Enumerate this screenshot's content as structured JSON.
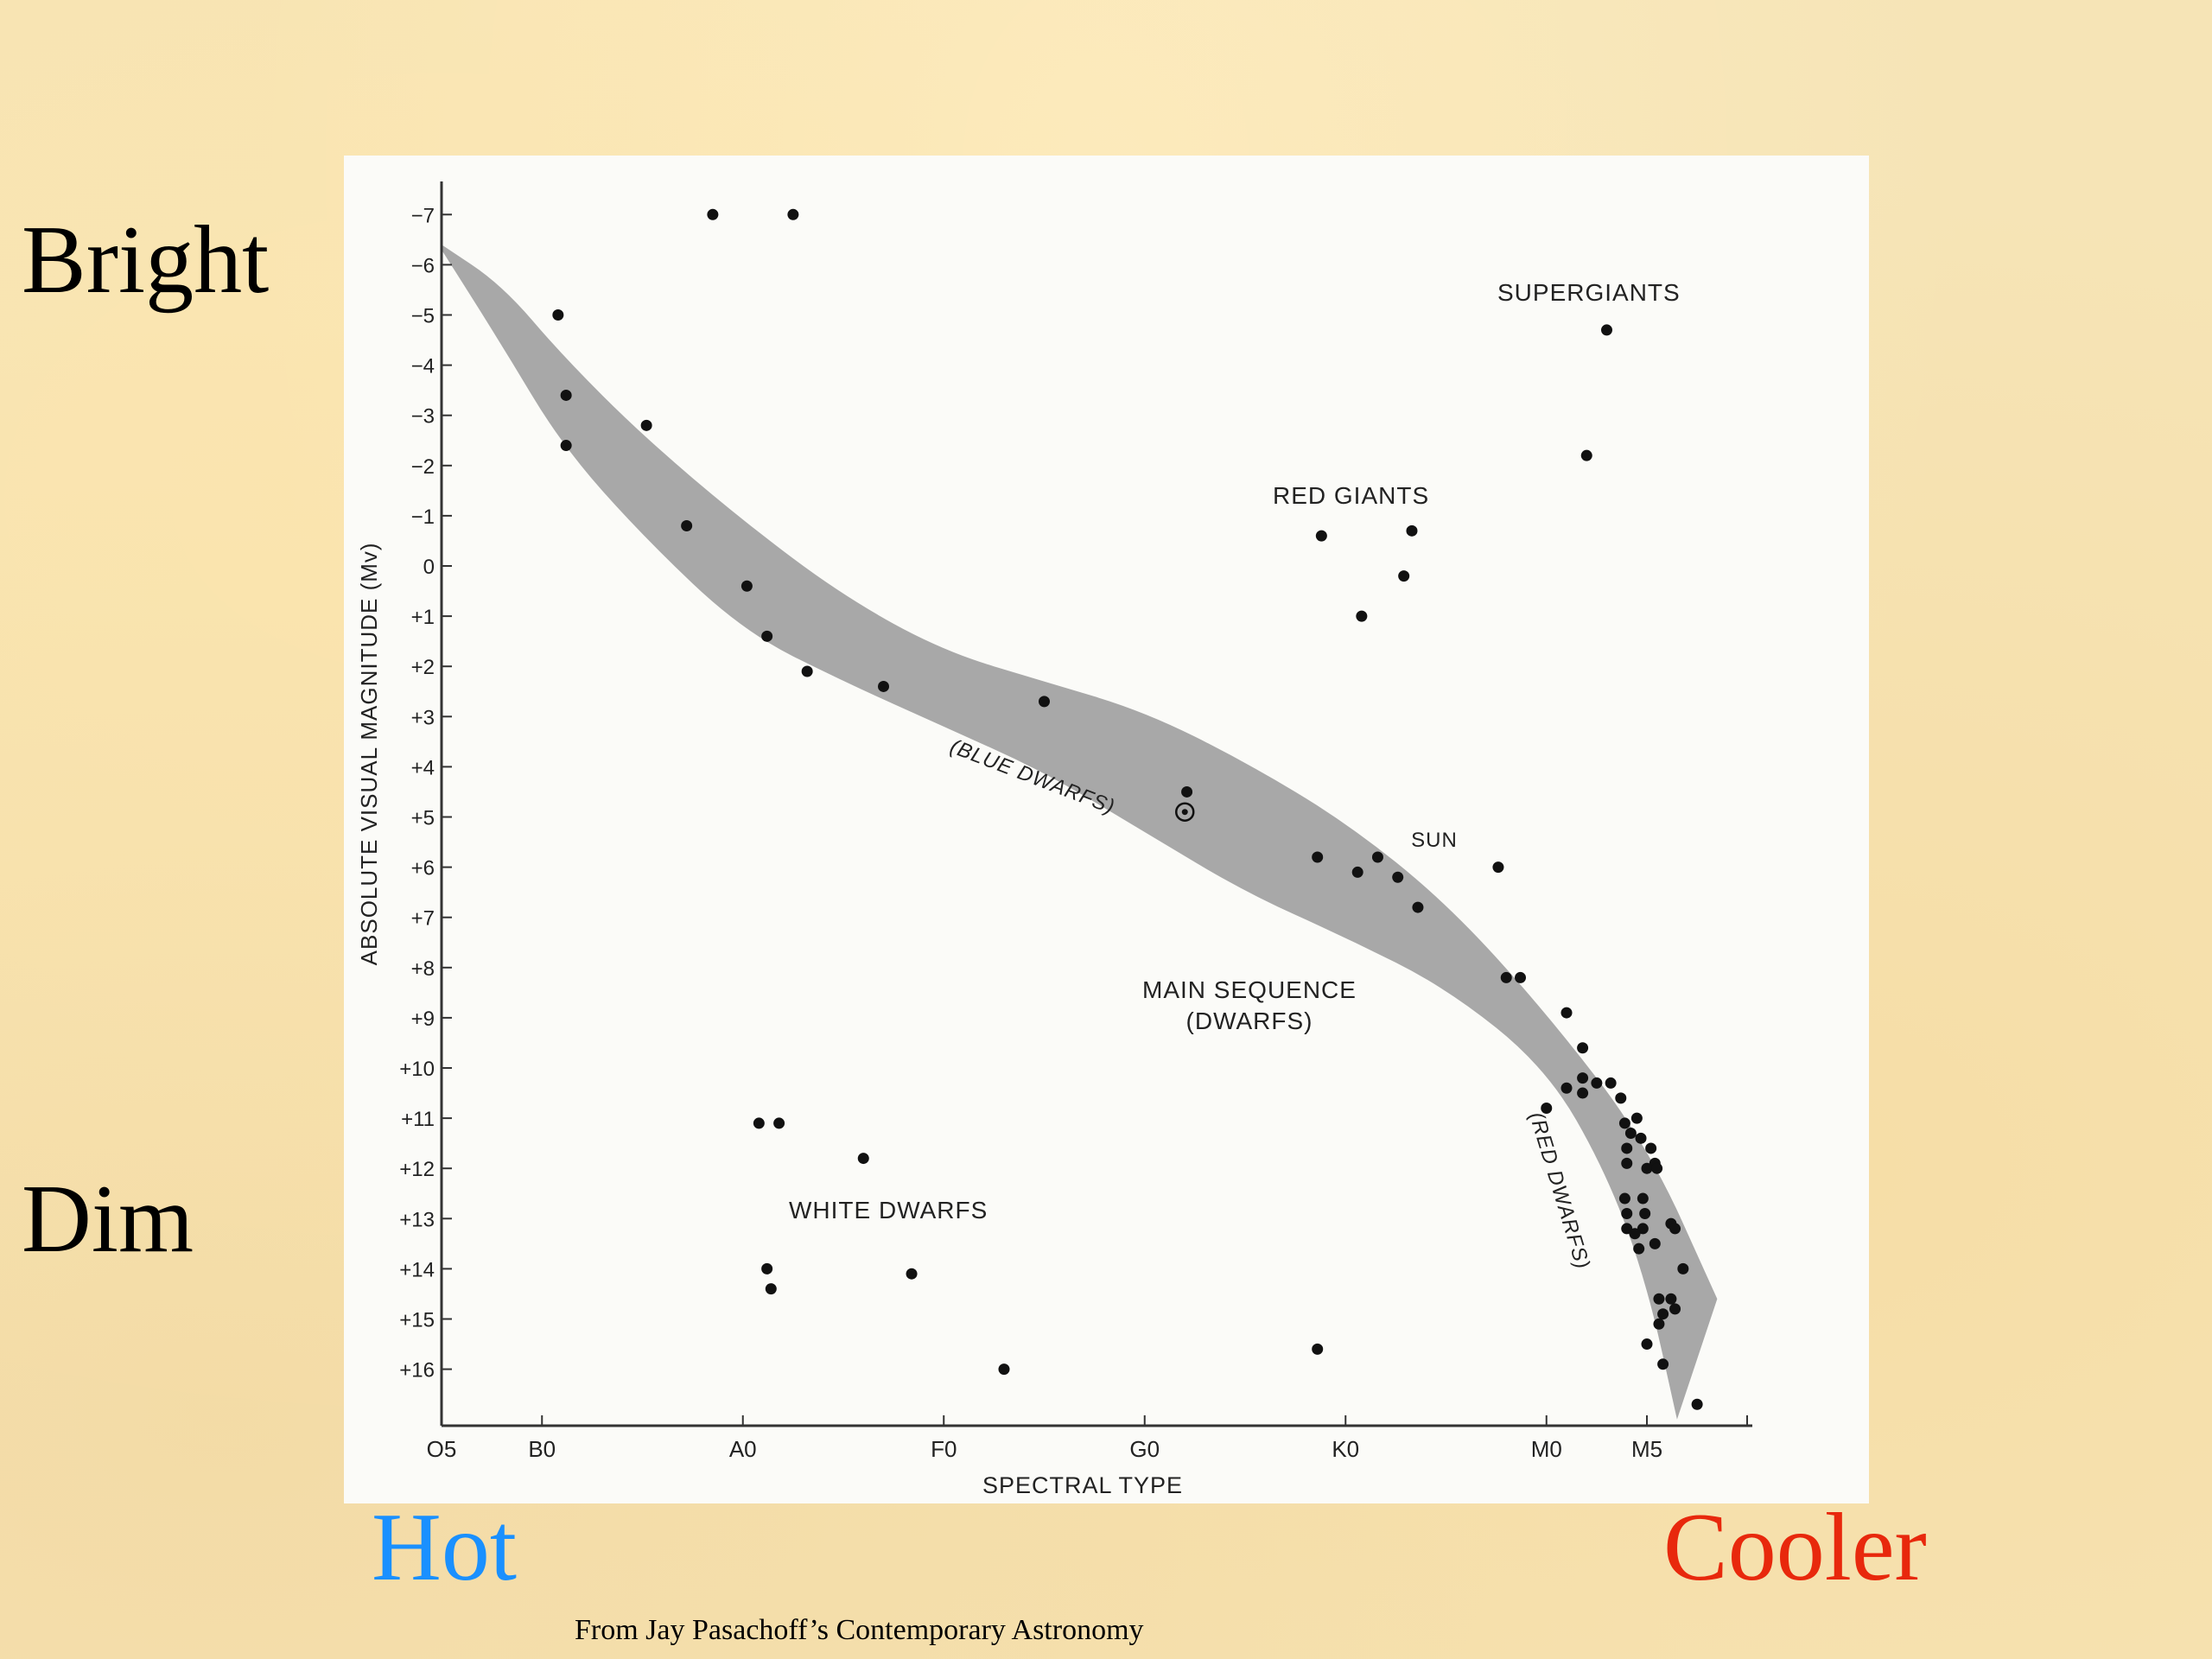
{
  "labels": {
    "bright": "Bright",
    "dim": "Dim",
    "hot": "Hot",
    "cooler": "Cooler",
    "credit": "From Jay Pasachoff’s Contemporary Astronomy"
  },
  "colors": {
    "hot": "#1a90ff",
    "cooler": "#e8280c",
    "band": "#a8a8a8",
    "points": "#111111"
  },
  "chart_data": {
    "type": "scatter",
    "title": "",
    "xlabel": "SPECTRAL TYPE",
    "ylabel": "ABSOLUTE VISUAL MAGNITUDE (Mv)",
    "x_tick_labels": [
      "O5",
      "B0",
      "A0",
      "F0",
      "G0",
      "K0",
      "M0",
      "M5"
    ],
    "y_tick_labels": [
      "−7",
      "−6",
      "−5",
      "−4",
      "−3",
      "−2",
      "−1",
      "0",
      "+1",
      "+2",
      "+3",
      "+4",
      "+5",
      "+6",
      "+7",
      "+8",
      "+9",
      "+10",
      "+11",
      "+12",
      "+13",
      "+14",
      "+15",
      "+16"
    ],
    "y_ticks": [
      -7,
      -6,
      -5,
      -4,
      -3,
      -2,
      -1,
      0,
      1,
      2,
      3,
      4,
      5,
      6,
      7,
      8,
      9,
      10,
      11,
      12,
      13,
      14,
      15,
      16
    ],
    "xlim": [
      0,
      6.6
    ],
    "ylim": [
      -7.5,
      17
    ],
    "y_inverted": true,
    "x_units": "spectral class index (O5=0, B0=0.5, A0=1.5, F0=2.5, G0=3.5, K0=4.5, M0=5.5, M5=6.0)",
    "annotations": {
      "supergiants": "SUPERGIANTS",
      "red_giants": "RED GIANTS",
      "blue_dwarfs": "(BLUE DWARFS)",
      "sun": "SUN",
      "main_sequence_1": "MAIN SEQUENCE",
      "main_sequence_2": "(DWARFS)",
      "red_dwarfs": "(RED DWARFS)",
      "white_dwarfs": "WHITE DWARFS"
    },
    "main_sequence_band": {
      "upper": [
        [
          0.0,
          -6.4
        ],
        [
          0.3,
          -5.6
        ],
        [
          0.6,
          -4.2
        ],
        [
          1.0,
          -2.6
        ],
        [
          1.5,
          -0.9
        ],
        [
          2.0,
          0.6
        ],
        [
          2.5,
          1.7
        ],
        [
          3.0,
          2.3
        ],
        [
          3.5,
          2.9
        ],
        [
          4.0,
          3.9
        ],
        [
          4.5,
          5.1
        ],
        [
          5.0,
          6.7
        ],
        [
          5.5,
          8.9
        ],
        [
          6.0,
          11.5
        ],
        [
          6.35,
          14.6
        ]
      ],
      "lower": [
        [
          0.0,
          -6.3
        ],
        [
          0.3,
          -4.4
        ],
        [
          0.6,
          -2.4
        ],
        [
          1.0,
          -0.6
        ],
        [
          1.5,
          1.3
        ],
        [
          2.0,
          2.3
        ],
        [
          2.5,
          3.2
        ],
        [
          3.0,
          4.1
        ],
        [
          3.5,
          5.3
        ],
        [
          4.0,
          6.5
        ],
        [
          4.5,
          7.4
        ],
        [
          5.0,
          8.4
        ],
        [
          5.5,
          10.0
        ],
        [
          5.8,
          12.1
        ],
        [
          6.0,
          14.3
        ],
        [
          6.15,
          17.0
        ]
      ]
    },
    "series": [
      {
        "name": "stars",
        "points": [
          [
            1.35,
            -7.0
          ],
          [
            1.75,
            -7.0
          ],
          [
            0.58,
            -5.0
          ],
          [
            0.62,
            -3.4
          ],
          [
            0.62,
            -2.4
          ],
          [
            1.02,
            -2.8
          ],
          [
            1.22,
            -0.8
          ],
          [
            1.52,
            0.4
          ],
          [
            1.62,
            1.4
          ],
          [
            1.82,
            2.1
          ],
          [
            2.2,
            2.4
          ],
          [
            3.0,
            2.7
          ],
          [
            3.71,
            4.5
          ],
          [
            4.36,
            5.8
          ],
          [
            4.56,
            6.1
          ],
          [
            4.66,
            5.8
          ],
          [
            4.76,
            6.2
          ],
          [
            4.86,
            6.8
          ],
          [
            5.26,
            6.0
          ],
          [
            5.3,
            8.2
          ],
          [
            5.37,
            8.2
          ],
          [
            4.38,
            -0.6
          ],
          [
            4.58,
            1.0
          ],
          [
            4.79,
            0.2
          ],
          [
            4.83,
            -0.7
          ],
          [
            5.8,
            -4.7
          ],
          [
            5.7,
            -2.2
          ],
          [
            5.6,
            8.9
          ],
          [
            5.5,
            10.8
          ],
          [
            5.6,
            10.4
          ],
          [
            5.68,
            9.6
          ],
          [
            5.68,
            10.2
          ],
          [
            5.75,
            10.3
          ],
          [
            5.68,
            10.5
          ],
          [
            5.82,
            10.3
          ],
          [
            5.87,
            10.6
          ],
          [
            5.89,
            11.1
          ],
          [
            5.95,
            11.0
          ],
          [
            5.92,
            11.3
          ],
          [
            5.97,
            11.4
          ],
          [
            6.02,
            11.6
          ],
          [
            6.04,
            11.9
          ],
          [
            5.9,
            11.6
          ],
          [
            5.9,
            11.9
          ],
          [
            6.0,
            12.0
          ],
          [
            6.05,
            12.0
          ],
          [
            5.89,
            12.6
          ],
          [
            5.98,
            12.6
          ],
          [
            5.99,
            12.9
          ],
          [
            5.9,
            12.9
          ],
          [
            5.9,
            13.2
          ],
          [
            5.98,
            13.2
          ],
          [
            5.94,
            13.3
          ],
          [
            6.04,
            13.5
          ],
          [
            5.96,
            13.6
          ],
          [
            6.12,
            13.1
          ],
          [
            6.14,
            13.2
          ],
          [
            6.18,
            14.0
          ],
          [
            6.06,
            14.6
          ],
          [
            6.12,
            14.6
          ],
          [
            6.08,
            14.9
          ],
          [
            6.14,
            14.8
          ],
          [
            6.06,
            15.1
          ],
          [
            6.0,
            15.5
          ],
          [
            6.08,
            15.9
          ],
          [
            6.25,
            16.7
          ],
          [
            1.58,
            11.1
          ],
          [
            1.68,
            11.1
          ],
          [
            2.1,
            11.8
          ],
          [
            1.62,
            14.0
          ],
          [
            1.64,
            14.4
          ],
          [
            2.34,
            14.1
          ],
          [
            2.8,
            16.0
          ],
          [
            4.36,
            15.6
          ]
        ]
      }
    ],
    "sun": [
      3.7,
      4.9
    ]
  }
}
